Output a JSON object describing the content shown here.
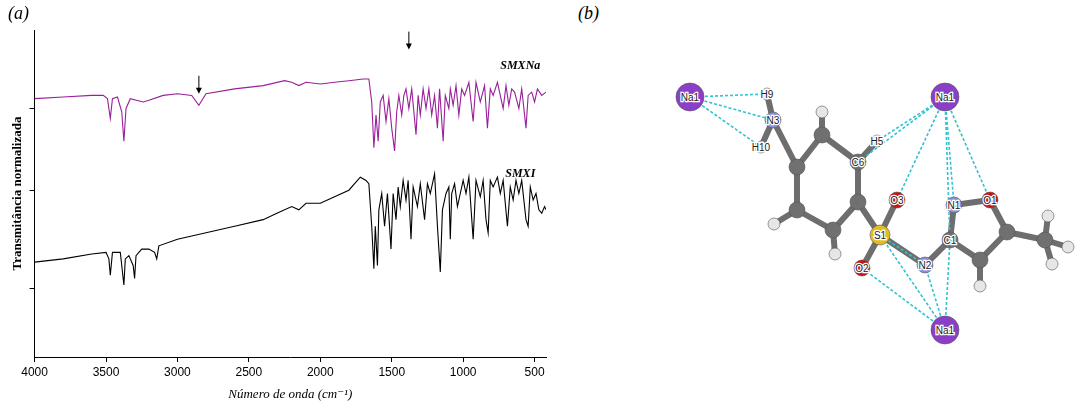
{
  "chart_data": {
    "type": "line",
    "panel_label": "(a)",
    "x_label": "Número de onda (cm⁻¹)",
    "y_label": "Transmitância normalizada",
    "xlim": [
      4000,
      420
    ],
    "xticks": [
      4000,
      3500,
      3000,
      2500,
      2000,
      1500,
      1000,
      500
    ],
    "ylim": [
      0,
      100
    ],
    "yticks": [
      21,
      51,
      76
    ],
    "tick_labels": "x",
    "grid": false,
    "series": [
      {
        "name": "SMXNa",
        "color": "#9a1f9a",
        "x": [
          4000,
          3800,
          3600,
          3520,
          3490,
          3470,
          3455,
          3420,
          3390,
          3375,
          3360,
          3330,
          3240,
          3200,
          3100,
          3000,
          2900,
          2850,
          2800,
          2600,
          2400,
          2250,
          2200,
          2150,
          2100,
          2000,
          1900,
          1800,
          1700,
          1660,
          1640,
          1625,
          1610,
          1595,
          1580,
          1560,
          1540,
          1520,
          1500,
          1480,
          1465,
          1450,
          1430,
          1415,
          1400,
          1380,
          1360,
          1330,
          1315,
          1300,
          1280,
          1260,
          1240,
          1220,
          1200,
          1180,
          1165,
          1140,
          1125,
          1100,
          1090,
          1070,
          1050,
          1030,
          1010,
          990,
          960,
          930,
          910,
          880,
          850,
          830,
          810,
          790,
          760,
          720,
          700,
          680,
          660,
          640,
          610,
          590,
          560,
          545,
          520,
          500,
          480,
          450,
          420
        ],
        "values": [
          79,
          79.5,
          80,
          80,
          79,
          73,
          79,
          79.5,
          75,
          66,
          76,
          79,
          78,
          78.5,
          80,
          80.5,
          80,
          77,
          80.5,
          82,
          83,
          84.5,
          84,
          83,
          84,
          83.5,
          84,
          84.5,
          85,
          85,
          78,
          64,
          74,
          66,
          78,
          80,
          72,
          79,
          70,
          63,
          75,
          80,
          74,
          80,
          82,
          76,
          82,
          68,
          80,
          74,
          82,
          76,
          82,
          74,
          80,
          70,
          82,
          66,
          80,
          76,
          82,
          77,
          83,
          74,
          82,
          80,
          84,
          72,
          84,
          78,
          83,
          70,
          82,
          80,
          84,
          76,
          83,
          77,
          82,
          81,
          76,
          82,
          70,
          80,
          81,
          78,
          82,
          80,
          81
        ]
      },
      {
        "name": "SMXI",
        "color": "#000000",
        "x": [
          4000,
          3800,
          3600,
          3500,
          3480,
          3470,
          3455,
          3400,
          3385,
          3375,
          3365,
          3340,
          3310,
          3300,
          3290,
          3250,
          3200,
          3160,
          3145,
          3130,
          3000,
          2900,
          2800,
          2600,
          2400,
          2300,
          2200,
          2150,
          2100,
          2000,
          1900,
          1800,
          1720,
          1680,
          1660,
          1640,
          1625,
          1615,
          1600,
          1590,
          1570,
          1550,
          1530,
          1505,
          1490,
          1470,
          1455,
          1440,
          1420,
          1400,
          1385,
          1365,
          1350,
          1320,
          1300,
          1270,
          1250,
          1230,
          1200,
          1180,
          1160,
          1145,
          1120,
          1100,
          1090,
          1080,
          1060,
          1040,
          1020,
          1000,
          980,
          960,
          930,
          910,
          880,
          860,
          840,
          825,
          810,
          790,
          760,
          740,
          720,
          690,
          670,
          650,
          630,
          610,
          590,
          560,
          545,
          530,
          510,
          490,
          470,
          450,
          430,
          420
        ],
        "values": [
          29,
          30,
          31.5,
          32,
          30,
          25,
          32,
          32,
          26,
          22,
          30,
          31,
          28,
          24,
          31,
          33,
          33,
          32,
          30,
          34,
          36,
          37,
          38,
          40,
          42,
          44,
          46,
          45,
          47,
          47,
          49,
          51,
          55,
          54,
          53,
          40,
          27,
          40,
          28,
          45,
          50,
          40,
          50,
          33,
          50,
          42,
          52,
          46,
          54,
          48,
          54,
          36,
          52,
          46,
          53,
          42,
          53,
          50,
          56,
          40,
          26,
          45,
          50,
          52,
          36,
          50,
          53,
          46,
          50,
          54,
          50,
          55,
          36,
          54,
          49,
          54,
          42,
          38,
          54,
          52,
          55,
          50,
          54,
          40,
          52,
          48,
          54,
          50,
          54,
          42,
          40,
          52,
          48,
          50,
          45,
          44,
          46,
          45
        ]
      }
    ],
    "annotations": [
      {
        "text": "SMXNa",
        "x": 600,
        "y": 89
      },
      {
        "text": "SMXI",
        "x": 600,
        "y": 56
      },
      {
        "x": 2850,
        "y": 80.5,
        "marker": "arrow"
      },
      {
        "x": 1380,
        "y": 94,
        "marker": "arrow"
      }
    ]
  },
  "diagram": {
    "panel_label": "(b)",
    "atoms": [
      {
        "label": "Na1",
        "element": "Na"
      },
      {
        "label": "H9",
        "element": "H"
      },
      {
        "label": "N3",
        "element": "N"
      },
      {
        "label": "H10",
        "element": "H"
      },
      {
        "label": "H5",
        "element": "H"
      },
      {
        "label": "C6",
        "element": "C"
      },
      {
        "label": "Na1",
        "element": "Na"
      },
      {
        "label": "O3",
        "element": "O"
      },
      {
        "label": "S1",
        "element": "S"
      },
      {
        "label": "O2",
        "element": "O"
      },
      {
        "label": "N2",
        "element": "N"
      },
      {
        "label": "C1",
        "element": "C"
      },
      {
        "label": "N1",
        "element": "N"
      },
      {
        "label": "O1",
        "element": "O"
      },
      {
        "label": "Na1",
        "element": "Na"
      }
    ]
  }
}
